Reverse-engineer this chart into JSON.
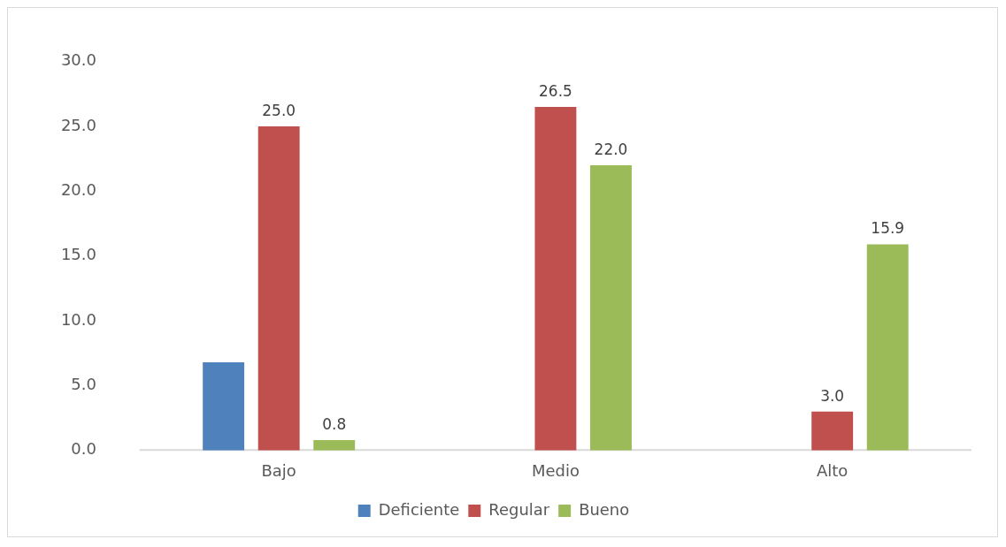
{
  "chart_data": {
    "type": "bar",
    "categories": [
      "Bajo",
      "Medio",
      "Alto"
    ],
    "series": [
      {
        "name": "Deficiente",
        "color": "#4f81bd",
        "values": [
          6.8,
          null,
          null
        ],
        "value_labels": [
          null,
          null,
          null
        ]
      },
      {
        "name": "Regular",
        "color": "#c0504d",
        "values": [
          25.0,
          26.5,
          3.0
        ],
        "value_labels": [
          "25.0",
          "26.5",
          "3.0"
        ]
      },
      {
        "name": "Bueno",
        "color": "#9bbb59",
        "values": [
          0.8,
          22.0,
          15.9
        ],
        "value_labels": [
          "0.8",
          "22.0",
          "15.9"
        ]
      }
    ],
    "ylim": [
      0,
      30
    ],
    "yticks": [
      {
        "value": 0,
        "label": "0.0"
      },
      {
        "value": 5,
        "label": "5.0"
      },
      {
        "value": 10,
        "label": "10.0"
      },
      {
        "value": 15,
        "label": "15.0"
      },
      {
        "value": 20,
        "label": "20.0"
      },
      {
        "value": 25,
        "label": "25.0"
      },
      {
        "value": 30,
        "label": "30.0"
      }
    ],
    "grid": false,
    "legend": "bottom"
  }
}
